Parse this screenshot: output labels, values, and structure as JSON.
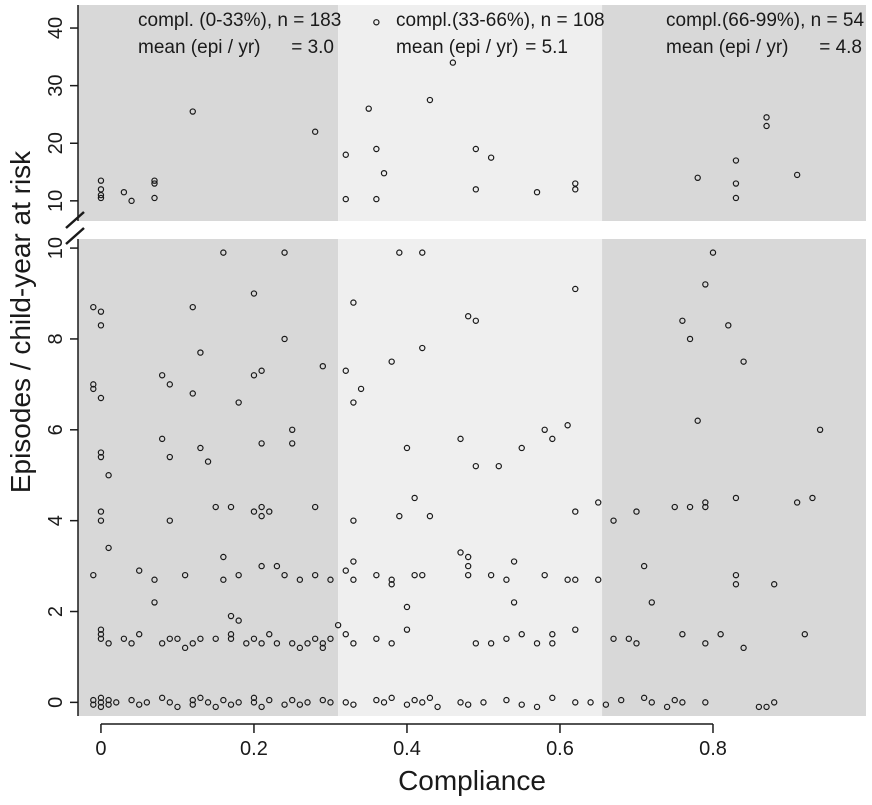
{
  "chart_data": {
    "type": "scatter",
    "xlabel": "Compliance",
    "ylabel": "Episodes / child-year at risk",
    "xlim": [
      -0.03,
      1.0
    ],
    "ylim_lower": [
      -0.3,
      10.2
    ],
    "ylim_upper": [
      6.5,
      44.0
    ],
    "axis_break": "10",
    "x_ticks": [
      0,
      0.2,
      0.4,
      0.6,
      0.8
    ],
    "x_tick_labels": [
      "0",
      "0.2",
      "0.4",
      "0.6",
      "0.8"
    ],
    "y_ticks_lower": [
      0,
      2,
      4,
      6,
      8,
      10
    ],
    "y_tick_labels_lower": [
      "0",
      "2",
      "4",
      "6",
      "8",
      "10"
    ],
    "y_ticks_upper": [
      10,
      20,
      30,
      40
    ],
    "y_tick_labels_upper": [
      "10",
      "20",
      "30",
      "40"
    ],
    "colors": {
      "band_dark": "#d8d8d8",
      "band_light": "#efefef",
      "marker": "#1a1a1a",
      "axis": "#1a1a1a"
    },
    "bands": [
      {
        "range": [
          -0.03,
          0.31
        ],
        "shade": "dark",
        "label_line1": "compl. (0-33%), n = 183",
        "label_line2": "mean (epi / yr)",
        "mean_value": "= 3.0"
      },
      {
        "range": [
          0.31,
          0.655
        ],
        "shade": "light",
        "label_line1": "compl.(33-66%), n = 108",
        "label_line2": "mean (epi / yr)",
        "mean_value": "= 5.1"
      },
      {
        "range": [
          0.655,
          1.0
        ],
        "shade": "dark",
        "label_line1": "compl.(66-99%), n = 54",
        "label_line2": "mean (epi / yr)",
        "mean_value": "= 4.8"
      }
    ],
    "points_upper": [
      [
        0.0,
        13.5
      ],
      [
        0.0,
        12.0
      ],
      [
        0.0,
        11.0
      ],
      [
        0.0,
        10.5
      ],
      [
        0.03,
        11.5
      ],
      [
        0.04,
        10.0
      ],
      [
        0.07,
        13.5
      ],
      [
        0.07,
        13.0
      ],
      [
        0.07,
        10.5
      ],
      [
        0.12,
        25.5
      ],
      [
        0.28,
        22.0
      ],
      [
        0.32,
        18.0
      ],
      [
        0.32,
        10.3
      ],
      [
        0.36,
        19.0
      ],
      [
        0.36,
        10.3
      ],
      [
        0.37,
        14.8
      ],
      [
        0.35,
        26.0
      ],
      [
        0.36,
        41.0
      ],
      [
        0.43,
        27.5
      ],
      [
        0.46,
        34.0
      ],
      [
        0.49,
        19.0
      ],
      [
        0.51,
        17.5
      ],
      [
        0.49,
        12.0
      ],
      [
        0.57,
        11.5
      ],
      [
        0.62,
        13.0
      ],
      [
        0.62,
        12.0
      ],
      [
        0.78,
        14.0
      ],
      [
        0.83,
        17.0
      ],
      [
        0.83,
        13.0
      ],
      [
        0.83,
        10.5
      ],
      [
        0.87,
        24.5
      ],
      [
        0.87,
        23.0
      ],
      [
        0.91,
        14.5
      ]
    ],
    "points_lower": [
      [
        -0.01,
        8.7
      ],
      [
        0.0,
        8.6
      ],
      [
        0.0,
        8.3
      ],
      [
        -0.01,
        7.0
      ],
      [
        -0.01,
        6.9
      ],
      [
        0.0,
        6.7
      ],
      [
        0.0,
        5.5
      ],
      [
        0.0,
        5.4
      ],
      [
        0.01,
        5.0
      ],
      [
        0.0,
        4.2
      ],
      [
        0.0,
        4.0
      ],
      [
        0.01,
        3.4
      ],
      [
        -0.01,
        2.8
      ],
      [
        0.0,
        1.6
      ],
      [
        0.0,
        1.5
      ],
      [
        0.0,
        1.4
      ],
      [
        0.01,
        1.3
      ],
      [
        0.12,
        8.7
      ],
      [
        0.13,
        7.7
      ],
      [
        0.08,
        7.2
      ],
      [
        0.09,
        7.0
      ],
      [
        0.12,
        6.8
      ],
      [
        0.08,
        5.8
      ],
      [
        0.13,
        5.6
      ],
      [
        0.09,
        5.4
      ],
      [
        0.14,
        5.3
      ],
      [
        0.09,
        4.0
      ],
      [
        0.15,
        4.3
      ],
      [
        0.17,
        4.3
      ],
      [
        0.16,
        3.2
      ],
      [
        0.11,
        2.8
      ],
      [
        0.07,
        2.7
      ],
      [
        0.05,
        2.9
      ],
      [
        0.07,
        2.2
      ],
      [
        0.16,
        9.9
      ],
      [
        0.2,
        9.0
      ],
      [
        0.18,
        6.6
      ],
      [
        0.2,
        7.2
      ],
      [
        0.21,
        7.3
      ],
      [
        0.21,
        5.7
      ],
      [
        0.25,
        6.0
      ],
      [
        0.25,
        5.7
      ],
      [
        0.21,
        4.3
      ],
      [
        0.22,
        4.2
      ],
      [
        0.2,
        4.2
      ],
      [
        0.21,
        4.1
      ],
      [
        0.21,
        3.0
      ],
      [
        0.18,
        2.8
      ],
      [
        0.16,
        2.7
      ],
      [
        0.23,
        3.0
      ],
      [
        0.24,
        2.8
      ],
      [
        0.26,
        2.7
      ],
      [
        0.28,
        2.8
      ],
      [
        0.24,
        8.0
      ],
      [
        0.24,
        9.9
      ],
      [
        0.29,
        7.4
      ],
      [
        0.28,
        4.3
      ],
      [
        0.3,
        2.7
      ],
      [
        0.33,
        8.8
      ],
      [
        0.32,
        7.3
      ],
      [
        0.34,
        6.9
      ],
      [
        0.33,
        6.6
      ],
      [
        0.33,
        4.0
      ],
      [
        0.33,
        3.1
      ],
      [
        0.32,
        2.9
      ],
      [
        0.33,
        2.7
      ],
      [
        0.36,
        2.8
      ],
      [
        0.38,
        2.6
      ],
      [
        0.38,
        2.7
      ],
      [
        0.38,
        7.5
      ],
      [
        0.39,
        9.9
      ],
      [
        0.42,
        9.9
      ],
      [
        0.42,
        7.8
      ],
      [
        0.4,
        5.6
      ],
      [
        0.41,
        4.5
      ],
      [
        0.39,
        4.1
      ],
      [
        0.43,
        4.1
      ],
      [
        0.41,
        2.8
      ],
      [
        0.42,
        2.8
      ],
      [
        0.4,
        2.1
      ],
      [
        0.47,
        5.8
      ],
      [
        0.48,
        8.5
      ],
      [
        0.49,
        8.4
      ],
      [
        0.49,
        5.2
      ],
      [
        0.52,
        5.2
      ],
      [
        0.55,
        5.6
      ],
      [
        0.47,
        3.3
      ],
      [
        0.48,
        3.2
      ],
      [
        0.48,
        3.0
      ],
      [
        0.48,
        2.8
      ],
      [
        0.51,
        2.8
      ],
      [
        0.54,
        3.1
      ],
      [
        0.53,
        2.7
      ],
      [
        0.54,
        2.2
      ],
      [
        0.58,
        6.0
      ],
      [
        0.59,
        5.8
      ],
      [
        0.61,
        6.1
      ],
      [
        0.62,
        4.2
      ],
      [
        0.58,
        2.8
      ],
      [
        0.61,
        2.7
      ],
      [
        0.62,
        2.7
      ],
      [
        0.62,
        9.1
      ],
      [
        0.62,
        1.6
      ],
      [
        0.65,
        4.4
      ],
      [
        0.65,
        2.7
      ],
      [
        0.67,
        4.0
      ],
      [
        0.7,
        4.2
      ],
      [
        0.71,
        3.0
      ],
      [
        0.72,
        2.2
      ],
      [
        0.76,
        8.4
      ],
      [
        0.77,
        8.0
      ],
      [
        0.78,
        6.2
      ],
      [
        0.8,
        9.9
      ],
      [
        0.79,
        9.2
      ],
      [
        0.82,
        8.3
      ],
      [
        0.84,
        7.5
      ],
      [
        0.75,
        4.3
      ],
      [
        0.77,
        4.3
      ],
      [
        0.79,
        4.4
      ],
      [
        0.79,
        4.3
      ],
      [
        0.83,
        4.5
      ],
      [
        0.83,
        2.8
      ],
      [
        0.83,
        2.6
      ],
      [
        0.88,
        2.6
      ],
      [
        0.91,
        4.4
      ],
      [
        0.93,
        4.5
      ],
      [
        0.94,
        6.0
      ],
      [
        0.92,
        1.5
      ],
      [
        0.67,
        1.4
      ],
      [
        0.69,
        1.4
      ],
      [
        0.7,
        1.3
      ],
      [
        0.76,
        1.5
      ],
      [
        0.79,
        1.3
      ],
      [
        0.81,
        1.5
      ],
      [
        0.84,
        1.2
      ],
      [
        0.03,
        1.4
      ],
      [
        0.04,
        1.3
      ],
      [
        0.05,
        1.5
      ],
      [
        0.08,
        1.3
      ],
      [
        0.09,
        1.4
      ],
      [
        0.1,
        1.4
      ],
      [
        0.12,
        1.3
      ],
      [
        0.15,
        1.4
      ],
      [
        0.17,
        1.5
      ],
      [
        0.17,
        1.4
      ],
      [
        0.19,
        1.3
      ],
      [
        0.2,
        1.4
      ],
      [
        0.21,
        1.3
      ],
      [
        0.22,
        1.5
      ],
      [
        0.23,
        1.3
      ],
      [
        0.25,
        1.3
      ],
      [
        0.27,
        1.3
      ],
      [
        0.28,
        1.4
      ],
      [
        0.29,
        1.3
      ],
      [
        0.3,
        1.4
      ],
      [
        0.31,
        1.7
      ],
      [
        0.32,
        1.5
      ],
      [
        0.33,
        1.3
      ],
      [
        0.36,
        1.4
      ],
      [
        0.38,
        1.3
      ],
      [
        0.4,
        1.6
      ],
      [
        0.49,
        1.3
      ],
      [
        0.51,
        1.3
      ],
      [
        0.53,
        1.4
      ],
      [
        0.55,
        1.5
      ],
      [
        0.57,
        1.3
      ],
      [
        0.59,
        1.5
      ],
      [
        0.59,
        1.3
      ],
      [
        0.17,
        1.9
      ],
      [
        0.18,
        1.8
      ],
      [
        0.13,
        1.4
      ],
      [
        0.11,
        1.2
      ],
      [
        0.26,
        1.2
      ],
      [
        0.29,
        1.2
      ]
    ],
    "points_zero": [
      [
        -0.01,
        0.05
      ],
      [
        -0.01,
        -0.05
      ],
      [
        0.0,
        0.1
      ],
      [
        0.0,
        0.0
      ],
      [
        0.0,
        -0.1
      ],
      [
        0.01,
        0.05
      ],
      [
        0.01,
        -0.05
      ],
      [
        0.02,
        0.0
      ],
      [
        0.04,
        0.05
      ],
      [
        0.05,
        -0.05
      ],
      [
        0.06,
        0.0
      ],
      [
        0.08,
        0.1
      ],
      [
        0.09,
        0.0
      ],
      [
        0.1,
        -0.1
      ],
      [
        0.12,
        0.05
      ],
      [
        0.12,
        -0.05
      ],
      [
        0.13,
        0.1
      ],
      [
        0.14,
        0.0
      ],
      [
        0.15,
        -0.1
      ],
      [
        0.16,
        0.05
      ],
      [
        0.17,
        -0.05
      ],
      [
        0.18,
        0.0
      ],
      [
        0.2,
        0.1
      ],
      [
        0.2,
        0.0
      ],
      [
        0.21,
        -0.1
      ],
      [
        0.22,
        0.05
      ],
      [
        0.24,
        -0.05
      ],
      [
        0.25,
        0.05
      ],
      [
        0.26,
        -0.05
      ],
      [
        0.27,
        0.0
      ],
      [
        0.29,
        0.05
      ],
      [
        0.3,
        0.0
      ],
      [
        0.32,
        0.0
      ],
      [
        0.33,
        -0.05
      ],
      [
        0.36,
        0.05
      ],
      [
        0.37,
        0.0
      ],
      [
        0.38,
        0.1
      ],
      [
        0.4,
        -0.05
      ],
      [
        0.41,
        0.05
      ],
      [
        0.42,
        0.0
      ],
      [
        0.43,
        0.1
      ],
      [
        0.44,
        -0.1
      ],
      [
        0.47,
        0.0
      ],
      [
        0.48,
        -0.05
      ],
      [
        0.5,
        0.0
      ],
      [
        0.53,
        0.05
      ],
      [
        0.55,
        -0.05
      ],
      [
        0.57,
        -0.1
      ],
      [
        0.59,
        0.1
      ],
      [
        0.62,
        0.0
      ],
      [
        0.64,
        0.0
      ],
      [
        0.66,
        -0.05
      ],
      [
        0.68,
        0.05
      ],
      [
        0.71,
        0.1
      ],
      [
        0.72,
        0.0
      ],
      [
        0.74,
        -0.1
      ],
      [
        0.75,
        0.05
      ],
      [
        0.76,
        0.0
      ],
      [
        0.79,
        0.0
      ],
      [
        0.86,
        -0.1
      ],
      [
        0.87,
        -0.1
      ],
      [
        0.88,
        0.0
      ]
    ]
  }
}
